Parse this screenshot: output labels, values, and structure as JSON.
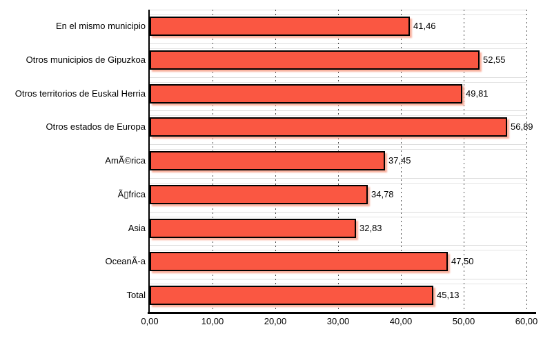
{
  "chart_data": {
    "type": "bar",
    "orientation": "horizontal",
    "title": "",
    "xlabel": "",
    "ylabel": "",
    "categories": [
      "En el mismo municipio",
      "Otros municipios de Gipuzkoa",
      "Otros territorios de Euskal Herria",
      "Otros estados de Europa",
      "AmÃ©rica",
      "Ã▯frica",
      "Asia",
      "OceanÃ-a",
      "Total"
    ],
    "values": [
      41.46,
      52.55,
      49.81,
      56.89,
      37.45,
      34.78,
      32.83,
      47.5,
      45.13
    ],
    "value_labels": [
      "41,46",
      "52,55",
      "49,81",
      "56,89",
      "37,45",
      "34,78",
      "32,83",
      "47,50",
      "45,13"
    ],
    "xlim": [
      0,
      60
    ],
    "x_ticks": [
      "0,00",
      "10,00",
      "20,00",
      "30,00",
      "40,00",
      "50,00",
      "60,00"
    ],
    "x_tick_values": [
      0,
      10,
      20,
      30,
      40,
      50,
      60
    ],
    "grid": "vertical dotted gridlines at each x tick; light horizontal lines at category band boundaries",
    "legend": "none",
    "colors": {
      "bar_fill": "#FA5742",
      "bar_outline": "#000000",
      "bar_shadow": "#F9B09E",
      "band_line": "#DCDCDC",
      "dotted_grid": "#4A4A4A",
      "axis": "#000000",
      "text": "#000000",
      "background": "#FFFFFF"
    }
  }
}
